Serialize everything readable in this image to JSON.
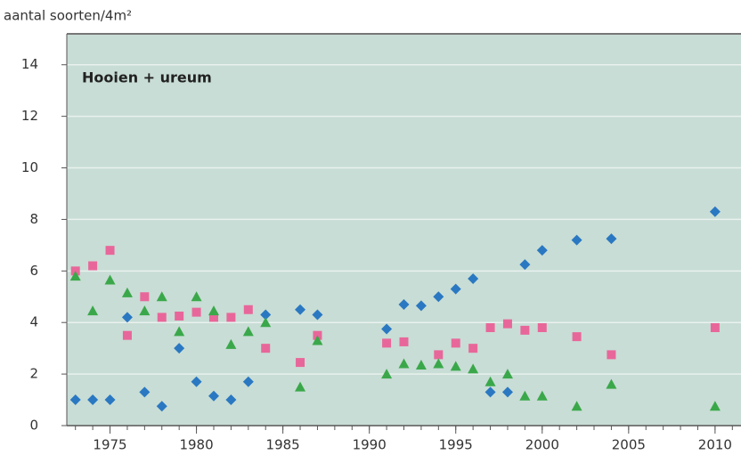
{
  "chart_data": {
    "type": "scatter",
    "ylabel": "aantal soorten/4m²",
    "annotation": "Hooien + ureum",
    "xlim": [
      1972.5,
      2011.5
    ],
    "xticks": [
      1975,
      1980,
      1985,
      1990,
      1995,
      2000,
      2005,
      2010
    ],
    "ylim": [
      0,
      15.2
    ],
    "yticks": [
      0,
      2,
      4,
      6,
      8,
      10,
      12,
      14
    ],
    "grid": true,
    "series": [
      {
        "color": "#2a78c2",
        "marker": "diamond",
        "x": [
          1973,
          1974,
          1975,
          1976,
          1977,
          1978,
          1979,
          1980,
          1981,
          1982,
          1983,
          1984,
          1986,
          1987,
          1991,
          1992,
          1993,
          1994,
          1995,
          1996,
          1997,
          1998,
          1999,
          2000,
          2002,
          2004,
          2010
        ],
        "values": [
          1.0,
          1.0,
          1.0,
          4.2,
          1.3,
          0.75,
          3.0,
          1.7,
          1.15,
          1.0,
          1.7,
          4.3,
          4.5,
          4.3,
          3.75,
          4.7,
          4.65,
          5.0,
          5.3,
          5.7,
          1.3,
          1.3,
          6.25,
          6.8,
          7.2,
          7.25,
          8.3
        ]
      },
      {
        "color": "#e8679a",
        "marker": "square",
        "x": [
          1973,
          1974,
          1975,
          1976,
          1977,
          1978,
          1979,
          1980,
          1981,
          1982,
          1983,
          1984,
          1986,
          1987,
          1991,
          1992,
          1994,
          1995,
          1996,
          1997,
          1998,
          1999,
          2000,
          2002,
          2004,
          2010
        ],
        "values": [
          6.0,
          6.2,
          6.8,
          3.5,
          5.0,
          4.2,
          4.25,
          4.4,
          4.2,
          4.2,
          4.5,
          3.0,
          2.45,
          3.5,
          3.2,
          3.25,
          2.75,
          3.2,
          3.0,
          3.8,
          3.95,
          3.7,
          3.8,
          3.45,
          2.75,
          3.8
        ]
      },
      {
        "color": "#3aa84a",
        "marker": "triangle",
        "x": [
          1973,
          1974,
          1975,
          1976,
          1977,
          1978,
          1979,
          1980,
          1981,
          1982,
          1983,
          1984,
          1986,
          1987,
          1991,
          1992,
          1993,
          1994,
          1995,
          1996,
          1997,
          1998,
          1999,
          2000,
          2002,
          2004,
          2010
        ],
        "values": [
          5.8,
          4.45,
          5.65,
          5.15,
          4.45,
          5.0,
          3.65,
          5.0,
          4.45,
          3.15,
          3.65,
          4.0,
          1.5,
          3.3,
          2.0,
          2.4,
          2.35,
          2.4,
          2.3,
          2.2,
          1.7,
          2.0,
          1.15,
          1.15,
          0.75,
          1.6,
          0.75
        ]
      }
    ]
  }
}
